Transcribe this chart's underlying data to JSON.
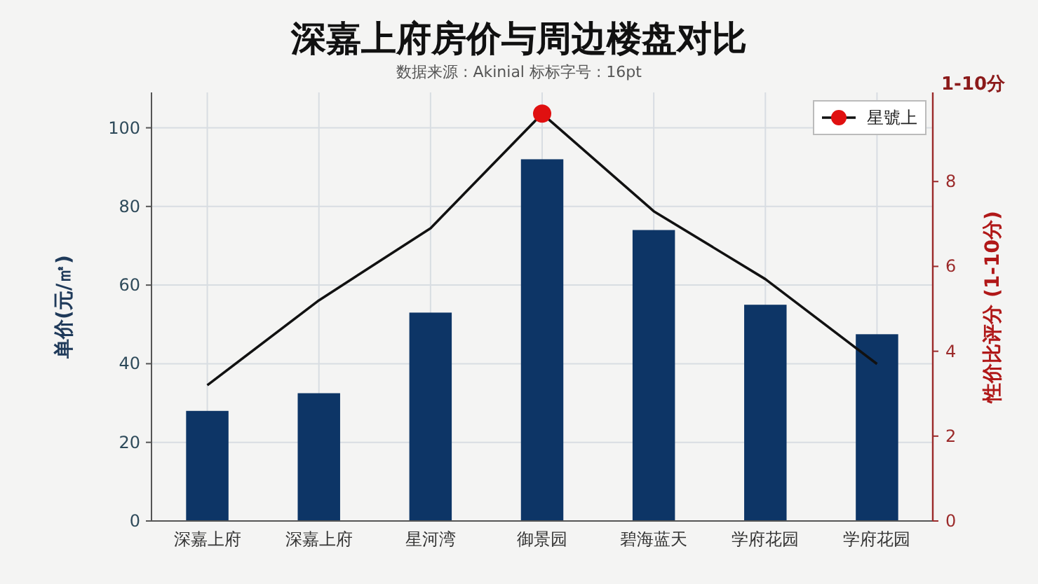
{
  "chart_data": {
    "type": "bar",
    "title": "深嘉上府房价与周边楼盘对比",
    "subtitle": "数据来源 : Akinial     标标字号 : 16pt",
    "categories": [
      "深嘉上府",
      "深嘉上府",
      "星河湾",
      "御景园",
      "碧海蓝天",
      "学府花园",
      "学府花园"
    ],
    "series": [
      {
        "color": "#0d3566",
        "values": [
          28,
          32.5,
          53,
          92,
          74,
          55,
          47.5
        ]
      },
      {
        "type": "line",
        "axis": "y2",
        "color": "#111111",
        "marker": "none",
        "values": [
          3.2,
          5.2,
          6.9,
          9.6,
          7.3,
          5.7,
          3.7
        ]
      },
      {
        "type": "scatter",
        "axis": "y2",
        "name": "星號上",
        "color": "#e01010",
        "marker": "circle",
        "values": [
          null,
          null,
          null,
          9.6,
          null,
          null,
          null
        ]
      }
    ],
    "ylabel": "单价(元/㎡)",
    "y2label": "性价比评分 (1-10分)",
    "ylim": [
      0,
      109
    ],
    "yticks": [
      0,
      20,
      40,
      60,
      80,
      100
    ],
    "y2lim": [
      0,
      10.1
    ],
    "y2ticks": [
      0,
      2,
      4,
      6,
      8
    ],
    "annotations": [
      "1-10分"
    ],
    "grid": true,
    "legend": "top right"
  }
}
